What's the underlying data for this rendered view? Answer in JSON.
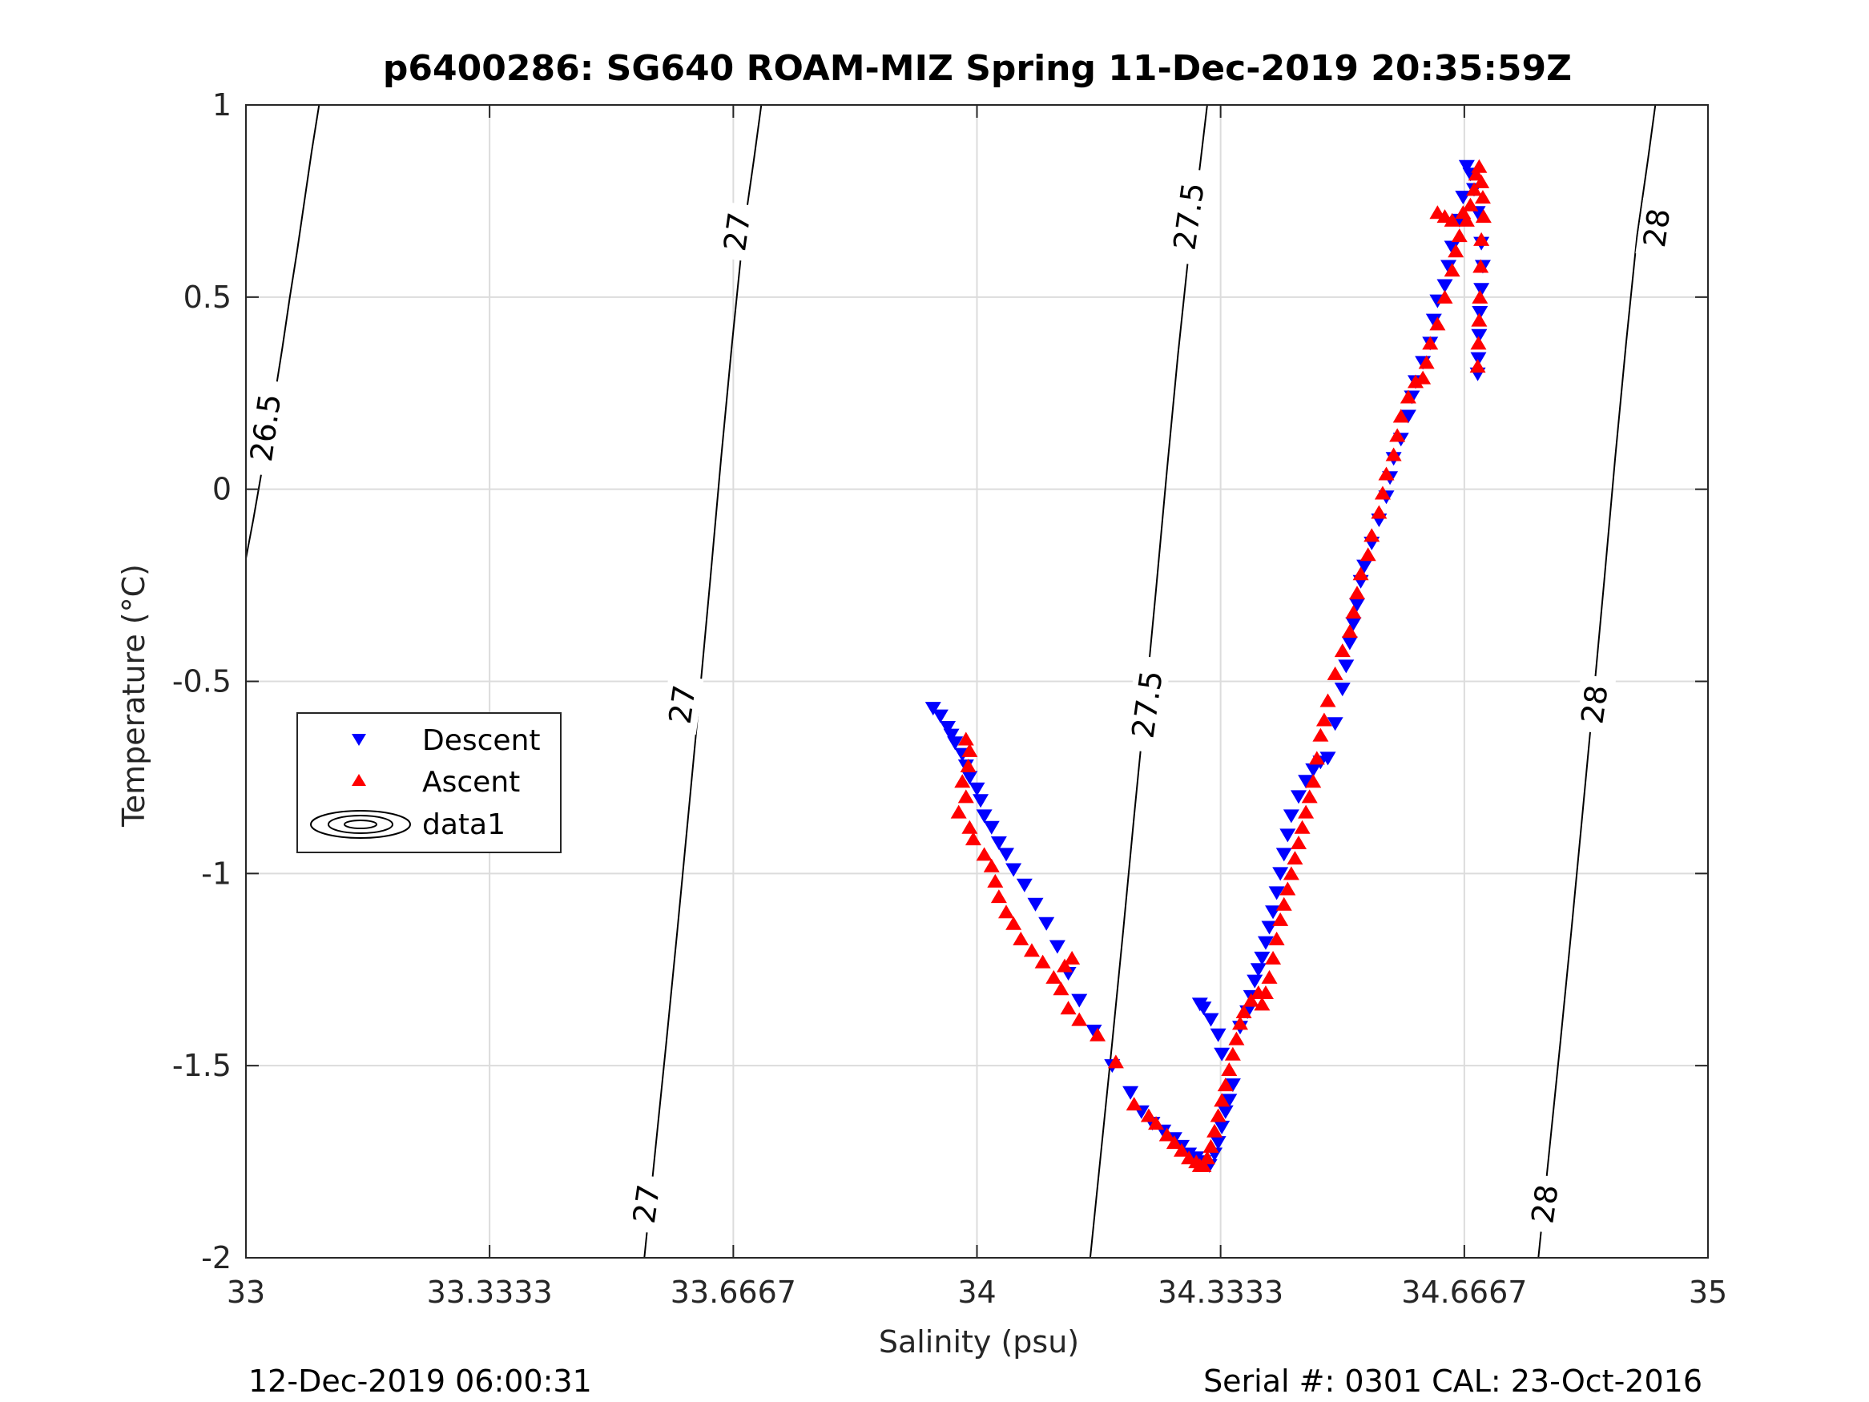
{
  "chart_data": {
    "type": "scatter",
    "title": "p6400286: SG640 ROAM-MIZ Spring 11-Dec-2019 20:35:59Z",
    "xlabel": "Salinity (psu)",
    "ylabel": "Temperature (°C)",
    "xlim": [
      33,
      35
    ],
    "ylim": [
      -2,
      1
    ],
    "xticks": [
      33,
      33.3333,
      33.6667,
      34,
      34.3333,
      34.6667,
      35
    ],
    "xtick_labels": [
      "33",
      "33.3333",
      "33.6667",
      "34",
      "34.3333",
      "34.6667",
      "35"
    ],
    "yticks": [
      -2,
      -1.5,
      -1,
      -0.5,
      0,
      0.5,
      1
    ],
    "ytick_labels": [
      "-2",
      "-1.5",
      "-1",
      "-0.5",
      "0",
      "0.5",
      "1"
    ],
    "grid": true,
    "legend_position": "left",
    "footer_left": "12-Dec-2019 06:00:31",
    "footer_right": "Serial #: 0301  CAL: 23-Oct-2016",
    "series": [
      {
        "name": "Descent",
        "marker": "triangle-down",
        "color": "#0000ff",
        "points": [
          [
            33.94,
            -0.57
          ],
          [
            33.95,
            -0.59
          ],
          [
            33.96,
            -0.62
          ],
          [
            33.965,
            -0.64
          ],
          [
            33.97,
            -0.66
          ],
          [
            33.98,
            -0.69
          ],
          [
            33.985,
            -0.72
          ],
          [
            33.99,
            -0.75
          ],
          [
            34.0,
            -0.78
          ],
          [
            34.005,
            -0.81
          ],
          [
            34.01,
            -0.85
          ],
          [
            34.02,
            -0.88
          ],
          [
            34.03,
            -0.92
          ],
          [
            34.04,
            -0.95
          ],
          [
            34.05,
            -0.99
          ],
          [
            34.065,
            -1.03
          ],
          [
            34.08,
            -1.08
          ],
          [
            34.095,
            -1.13
          ],
          [
            34.11,
            -1.19
          ],
          [
            34.125,
            -1.26
          ],
          [
            34.14,
            -1.33
          ],
          [
            34.16,
            -1.41
          ],
          [
            34.185,
            -1.5
          ],
          [
            34.21,
            -1.57
          ],
          [
            34.225,
            -1.62
          ],
          [
            34.24,
            -1.65
          ],
          [
            34.255,
            -1.67
          ],
          [
            34.27,
            -1.69
          ],
          [
            34.28,
            -1.71
          ],
          [
            34.29,
            -1.73
          ],
          [
            34.3,
            -1.74
          ],
          [
            34.31,
            -1.75
          ],
          [
            34.318,
            -1.76
          ],
          [
            34.325,
            -1.73
          ],
          [
            34.33,
            -1.7
          ],
          [
            34.335,
            -1.66
          ],
          [
            34.34,
            -1.62
          ],
          [
            34.345,
            -1.59
          ],
          [
            34.35,
            -1.55
          ],
          [
            34.335,
            -1.47
          ],
          [
            34.33,
            -1.42
          ],
          [
            34.32,
            -1.38
          ],
          [
            34.31,
            -1.35
          ],
          [
            34.305,
            -1.34
          ],
          [
            34.36,
            -1.4
          ],
          [
            34.37,
            -1.36
          ],
          [
            34.375,
            -1.32
          ],
          [
            34.38,
            -1.28
          ],
          [
            34.385,
            -1.25
          ],
          [
            34.39,
            -1.22
          ],
          [
            34.395,
            -1.18
          ],
          [
            34.4,
            -1.14
          ],
          [
            34.405,
            -1.1
          ],
          [
            34.41,
            -1.05
          ],
          [
            34.415,
            -1.0
          ],
          [
            34.42,
            -0.95
          ],
          [
            34.425,
            -0.9
          ],
          [
            34.43,
            -0.85
          ],
          [
            34.44,
            -0.8
          ],
          [
            34.45,
            -0.76
          ],
          [
            34.46,
            -0.73
          ],
          [
            34.47,
            -0.71
          ],
          [
            34.48,
            -0.7
          ],
          [
            34.49,
            -0.61
          ],
          [
            34.5,
            -0.52
          ],
          [
            34.505,
            -0.46
          ],
          [
            34.51,
            -0.4
          ],
          [
            34.515,
            -0.35
          ],
          [
            34.52,
            -0.3
          ],
          [
            34.525,
            -0.24
          ],
          [
            34.53,
            -0.2
          ],
          [
            34.54,
            -0.14
          ],
          [
            34.55,
            -0.08
          ],
          [
            34.56,
            -0.02
          ],
          [
            34.565,
            0.03
          ],
          [
            34.57,
            0.08
          ],
          [
            34.58,
            0.13
          ],
          [
            34.59,
            0.19
          ],
          [
            34.595,
            0.24
          ],
          [
            34.6,
            0.28
          ],
          [
            34.61,
            0.33
          ],
          [
            34.62,
            0.38
          ],
          [
            34.625,
            0.44
          ],
          [
            34.63,
            0.49
          ],
          [
            34.64,
            0.53
          ],
          [
            34.645,
            0.58
          ],
          [
            34.65,
            0.63
          ],
          [
            34.66,
            0.7
          ],
          [
            34.665,
            0.76
          ],
          [
            34.67,
            0.84
          ],
          [
            34.675,
            0.82
          ],
          [
            34.68,
            0.78
          ],
          [
            34.685,
            0.72
          ],
          [
            34.69,
            0.64
          ],
          [
            34.692,
            0.58
          ],
          [
            34.69,
            0.52
          ],
          [
            34.688,
            0.46
          ],
          [
            34.687,
            0.4
          ],
          [
            34.686,
            0.34
          ],
          [
            34.685,
            0.3
          ]
        ]
      },
      {
        "name": "Ascent",
        "marker": "triangle-up",
        "color": "#ff0000",
        "points": [
          [
            33.985,
            -0.65
          ],
          [
            33.99,
            -0.68
          ],
          [
            33.988,
            -0.72
          ],
          [
            33.98,
            -0.76
          ],
          [
            33.985,
            -0.8
          ],
          [
            33.975,
            -0.84
          ],
          [
            33.99,
            -0.88
          ],
          [
            33.995,
            -0.91
          ],
          [
            34.01,
            -0.95
          ],
          [
            34.02,
            -0.98
          ],
          [
            34.025,
            -1.02
          ],
          [
            34.03,
            -1.06
          ],
          [
            34.04,
            -1.1
          ],
          [
            34.05,
            -1.13
          ],
          [
            34.06,
            -1.17
          ],
          [
            34.075,
            -1.2
          ],
          [
            34.09,
            -1.23
          ],
          [
            34.105,
            -1.27
          ],
          [
            34.115,
            -1.3
          ],
          [
            34.12,
            -1.24
          ],
          [
            34.13,
            -1.22
          ],
          [
            34.125,
            -1.35
          ],
          [
            34.14,
            -1.38
          ],
          [
            34.165,
            -1.42
          ],
          [
            34.19,
            -1.49
          ],
          [
            34.215,
            -1.6
          ],
          [
            34.235,
            -1.63
          ],
          [
            34.245,
            -1.65
          ],
          [
            34.26,
            -1.68
          ],
          [
            34.27,
            -1.7
          ],
          [
            34.28,
            -1.72
          ],
          [
            34.29,
            -1.74
          ],
          [
            34.3,
            -1.75
          ],
          [
            34.305,
            -1.76
          ],
          [
            34.31,
            -1.76
          ],
          [
            34.315,
            -1.74
          ],
          [
            34.32,
            -1.71
          ],
          [
            34.325,
            -1.67
          ],
          [
            34.33,
            -1.63
          ],
          [
            34.335,
            -1.59
          ],
          [
            34.34,
            -1.55
          ],
          [
            34.345,
            -1.51
          ],
          [
            34.35,
            -1.47
          ],
          [
            34.355,
            -1.43
          ],
          [
            34.36,
            -1.39
          ],
          [
            34.365,
            -1.36
          ],
          [
            34.375,
            -1.33
          ],
          [
            34.385,
            -1.31
          ],
          [
            34.39,
            -1.34
          ],
          [
            34.395,
            -1.31
          ],
          [
            34.4,
            -1.27
          ],
          [
            34.405,
            -1.22
          ],
          [
            34.41,
            -1.17
          ],
          [
            34.415,
            -1.12
          ],
          [
            34.42,
            -1.08
          ],
          [
            34.425,
            -1.04
          ],
          [
            34.43,
            -1.0
          ],
          [
            34.435,
            -0.96
          ],
          [
            34.44,
            -0.92
          ],
          [
            34.445,
            -0.88
          ],
          [
            34.45,
            -0.84
          ],
          [
            34.455,
            -0.8
          ],
          [
            34.46,
            -0.76
          ],
          [
            34.465,
            -0.7
          ],
          [
            34.47,
            -0.64
          ],
          [
            34.475,
            -0.6
          ],
          [
            34.48,
            -0.55
          ],
          [
            34.49,
            -0.48
          ],
          [
            34.5,
            -0.42
          ],
          [
            34.51,
            -0.37
          ],
          [
            34.515,
            -0.32
          ],
          [
            34.52,
            -0.27
          ],
          [
            34.525,
            -0.22
          ],
          [
            34.535,
            -0.17
          ],
          [
            34.54,
            -0.12
          ],
          [
            34.55,
            -0.06
          ],
          [
            34.555,
            -0.01
          ],
          [
            34.56,
            0.04
          ],
          [
            34.57,
            0.09
          ],
          [
            34.575,
            0.14
          ],
          [
            34.58,
            0.19
          ],
          [
            34.59,
            0.24
          ],
          [
            34.6,
            0.28
          ],
          [
            34.61,
            0.29
          ],
          [
            34.615,
            0.33
          ],
          [
            34.62,
            0.38
          ],
          [
            34.63,
            0.43
          ],
          [
            34.64,
            0.5
          ],
          [
            34.65,
            0.57
          ],
          [
            34.655,
            0.62
          ],
          [
            34.66,
            0.66
          ],
          [
            34.665,
            0.72
          ],
          [
            34.67,
            0.7
          ],
          [
            34.675,
            0.74
          ],
          [
            34.68,
            0.78
          ],
          [
            34.683,
            0.82
          ],
          [
            34.687,
            0.84
          ],
          [
            34.69,
            0.8
          ],
          [
            34.692,
            0.76
          ],
          [
            34.693,
            0.71
          ],
          [
            34.69,
            0.65
          ],
          [
            34.689,
            0.58
          ],
          [
            34.688,
            0.5
          ],
          [
            34.687,
            0.44
          ],
          [
            34.686,
            0.38
          ],
          [
            34.685,
            0.32
          ],
          [
            34.64,
            0.71
          ],
          [
            34.63,
            0.72
          ],
          [
            34.65,
            0.7
          ]
        ]
      },
      {
        "name": "data1",
        "type": "contour",
        "color": "#000000",
        "levels": [
          {
            "label": "26.5",
            "points": [
              [
                33.0,
                -0.18
              ],
              [
                33.01,
                -0.08
              ],
              [
                33.02,
                0.03
              ],
              [
                33.03,
                0.14
              ],
              [
                33.04,
                0.25
              ],
              [
                33.05,
                0.37
              ],
              [
                33.06,
                0.5
              ],
              [
                33.07,
                0.62
              ],
              [
                33.08,
                0.75
              ],
              [
                33.09,
                0.88
              ],
              [
                33.1,
                1.0
              ]
            ]
          },
          {
            "label": "27",
            "points": [
              [
                33.545,
                -2.0
              ],
              [
                33.56,
                -1.72
              ],
              [
                33.575,
                -1.44
              ],
              [
                33.59,
                -1.15
              ],
              [
                33.605,
                -0.85
              ],
              [
                33.62,
                -0.55
              ],
              [
                33.635,
                -0.24
              ],
              [
                33.65,
                0.08
              ],
              [
                33.665,
                0.38
              ],
              [
                33.68,
                0.66
              ],
              [
                33.695,
                0.86
              ],
              [
                33.705,
                1.0
              ]
            ]
          },
          {
            "label": "27.5",
            "points": [
              [
                34.155,
                -2.0
              ],
              [
                34.17,
                -1.72
              ],
              [
                34.185,
                -1.44
              ],
              [
                34.2,
                -1.15
              ],
              [
                34.215,
                -0.85
              ],
              [
                34.23,
                -0.56
              ],
              [
                34.245,
                -0.26
              ],
              [
                34.26,
                0.05
              ],
              [
                34.275,
                0.35
              ],
              [
                34.29,
                0.62
              ],
              [
                34.305,
                0.84
              ],
              [
                34.315,
                1.0
              ]
            ]
          },
          {
            "label": "28",
            "points": [
              [
                34.768,
                -2.0
              ],
              [
                34.783,
                -1.72
              ],
              [
                34.798,
                -1.44
              ],
              [
                34.813,
                -1.15
              ],
              [
                34.828,
                -0.85
              ],
              [
                34.843,
                -0.55
              ],
              [
                34.858,
                -0.24
              ],
              [
                34.873,
                0.08
              ],
              [
                34.888,
                0.38
              ],
              [
                34.903,
                0.66
              ],
              [
                34.918,
                0.86
              ],
              [
                34.928,
                1.0
              ]
            ]
          }
        ],
        "contour_labels": [
          {
            "text": "26.5",
            "x": 33.027,
            "y": 0.16
          },
          {
            "text": "27",
            "x": 33.672,
            "y": 0.67
          },
          {
            "text": "27",
            "x": 33.597,
            "y": -0.56
          },
          {
            "text": "27",
            "x": 33.548,
            "y": -1.86
          },
          {
            "text": "27.5",
            "x": 34.29,
            "y": 0.71
          },
          {
            "text": "27.5",
            "x": 34.233,
            "y": -0.56
          },
          {
            "text": "28",
            "x": 34.93,
            "y": 0.68
          },
          {
            "text": "28",
            "x": 34.845,
            "y": -0.56
          },
          {
            "text": "28",
            "x": 34.777,
            "y": -1.86
          }
        ]
      }
    ]
  }
}
